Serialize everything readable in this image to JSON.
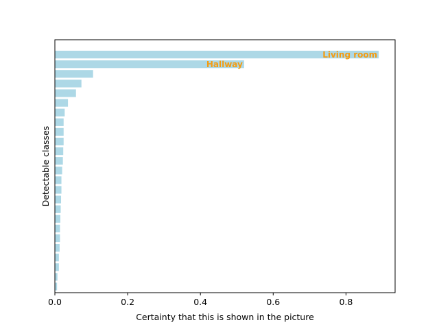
{
  "chart_data": {
    "type": "bar",
    "orientation": "horizontal",
    "title": "",
    "xlabel": "Certainty that this is shown in the picture",
    "ylabel": "Detectable classes",
    "xlim": [
      0,
      0.935
    ],
    "xticks": [
      "0.0",
      "0.2",
      "0.4",
      "0.6",
      "0.8"
    ],
    "xtick_values": [
      0,
      0.2,
      0.4,
      0.6,
      0.8
    ],
    "values": [
      0.89,
      0.52,
      0.105,
      0.073,
      0.058,
      0.036,
      0.027,
      0.024,
      0.024,
      0.024,
      0.023,
      0.022,
      0.02,
      0.018,
      0.018,
      0.017,
      0.016,
      0.015,
      0.014,
      0.014,
      0.013,
      0.011,
      0.011,
      0.007,
      0.006
    ],
    "bar_labels": [
      {
        "index": 0,
        "text": "Living room"
      },
      {
        "index": 1,
        "text": "Hallway"
      }
    ],
    "grid": false,
    "legend": "none",
    "bar_color": "#add8e6",
    "label_color": "#f39c12"
  }
}
